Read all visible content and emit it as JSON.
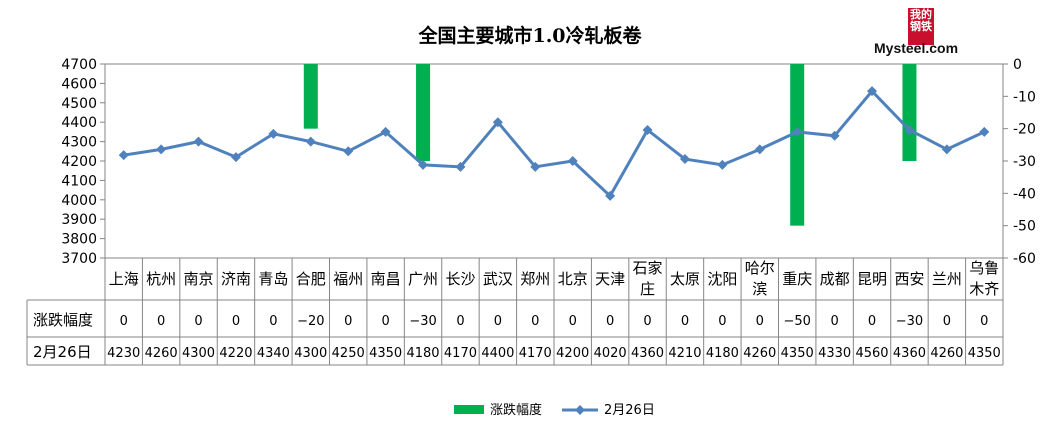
{
  "logo": {
    "mark": "我的钢铁",
    "brand": "Mysteel.com"
  },
  "chart_data": {
    "type": "bar+line",
    "title": "全国主要城市1.0冷轧板卷",
    "categories": [
      "上海",
      "杭州",
      "南京",
      "济南",
      "青岛",
      "合肥",
      "福州",
      "南昌",
      "广州",
      "长沙",
      "武汉",
      "郑州",
      "北京",
      "天津",
      "石家庄",
      "太原",
      "沈阳",
      "哈尔滨",
      "重庆",
      "成都",
      "昆明",
      "西安",
      "兰州",
      "乌鲁木齐"
    ],
    "series": [
      {
        "name": "涨跌幅度",
        "type": "bar",
        "axis": "right",
        "color": "#00b050",
        "values": [
          0,
          0,
          0,
          0,
          0,
          -20,
          0,
          0,
          -30,
          0,
          0,
          0,
          0,
          0,
          0,
          0,
          0,
          0,
          -50,
          0,
          0,
          -30,
          0,
          0
        ]
      },
      {
        "name": "2月26日",
        "type": "line",
        "axis": "left",
        "color": "#4f81bd",
        "values": [
          4230,
          4260,
          4300,
          4220,
          4340,
          4300,
          4250,
          4350,
          4180,
          4170,
          4400,
          4170,
          4200,
          4020,
          4360,
          4210,
          4180,
          4260,
          4350,
          4330,
          4560,
          4360,
          4260,
          4350
        ]
      }
    ],
    "y_left": {
      "min": 3700,
      "max": 4700,
      "step": 100,
      "ticks": [
        "4700",
        "4600",
        "4500",
        "4400",
        "4300",
        "4200",
        "4100",
        "4000",
        "3900",
        "3800",
        "3700"
      ]
    },
    "y_right": {
      "min": -60,
      "max": 0,
      "step": 10,
      "ticks": [
        "0",
        "-10",
        "-20",
        "-30",
        "-40",
        "-50",
        "-60"
      ]
    },
    "table_rows": [
      {
        "label": "涨跌幅度",
        "values": [
          "0",
          "0",
          "0",
          "0",
          "0",
          "−20",
          "0",
          "0",
          "−30",
          "0",
          "0",
          "0",
          "0",
          "0",
          "0",
          "0",
          "0",
          "0",
          "−50",
          "0",
          "0",
          "−30",
          "0",
          "0"
        ]
      },
      {
        "label": "2月26日",
        "values": [
          "4230",
          "4260",
          "4300",
          "4220",
          "4340",
          "4300",
          "4250",
          "4350",
          "4180",
          "4170",
          "4400",
          "4170",
          "4200",
          "4020",
          "4360",
          "4210",
          "4180",
          "4260",
          "4350",
          "4330",
          "4560",
          "4360",
          "4260",
          "4350"
        ]
      }
    ],
    "legend": {
      "position": "bottom",
      "items": [
        "涨跌幅度",
        "2月26日"
      ]
    },
    "grid": false
  }
}
